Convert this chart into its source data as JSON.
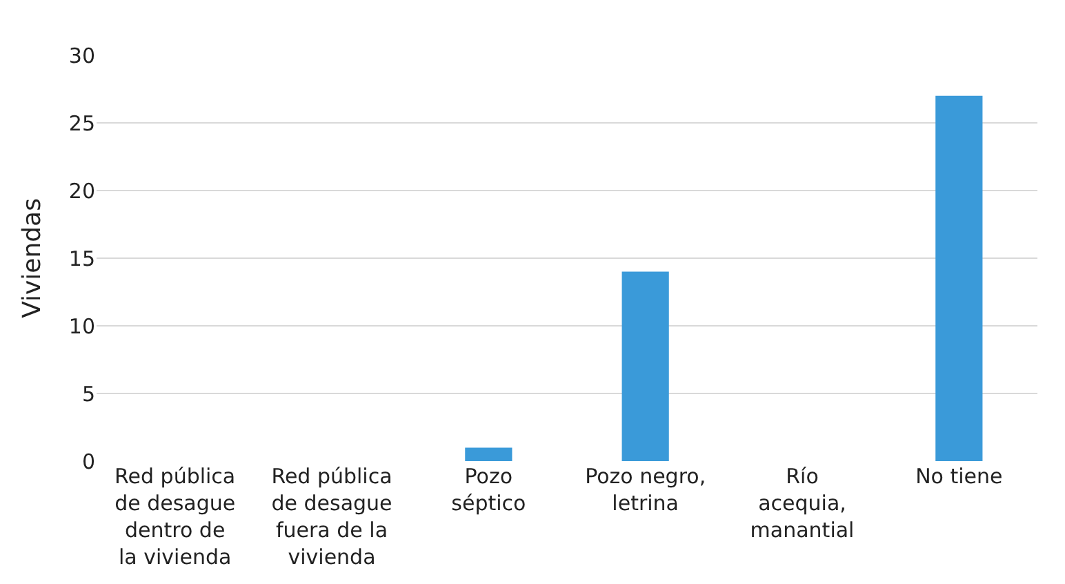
{
  "chart_data": {
    "type": "bar",
    "ylabel": "Viviendas",
    "categories": [
      "Red pública de desague dentro de la vivienda",
      "Red pública de desague fuera de la vivienda",
      "Pozo séptico",
      "Pozo negro, letrina",
      "Río acequia, manantial",
      "No tiene"
    ],
    "values": [
      0,
      0,
      1,
      14,
      0,
      27
    ],
    "color": "#3a9ad9",
    "ylim": [
      0,
      30
    ],
    "yticks": [
      0,
      5,
      10,
      15,
      20,
      25,
      30
    ],
    "grid": "y"
  }
}
